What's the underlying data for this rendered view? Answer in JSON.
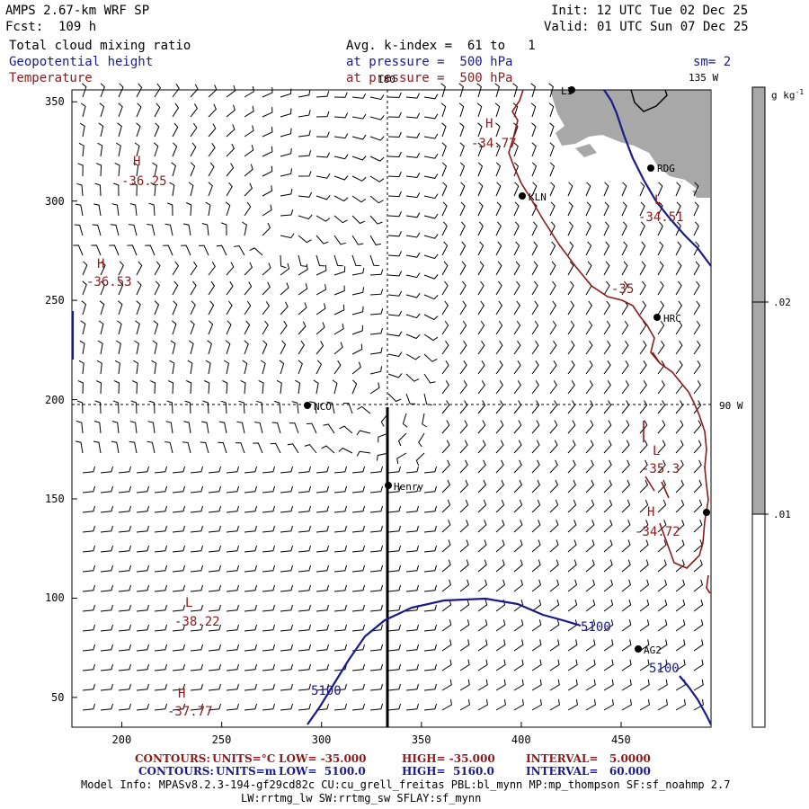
{
  "header": {
    "model": "AMPS 2.67-km WRF SP",
    "forecast": "Fcst:  109 h",
    "init": "Init: 12 UTC Tue 02 Dec 25",
    "valid": "Valid: 01 UTC Sun 07 Dec 25",
    "field1": "Total cloud mixing ratio",
    "field2": "Geopotential height",
    "field3": "Temperature",
    "avg_k": "Avg. k-index =  61 to   1",
    "pressure1": "at pressure =  500 hPa",
    "pressure2": "at pressure =  500 hPa",
    "sm": "sm= 2"
  },
  "map_labels": {
    "lon180": "180",
    "lon135": "135 W",
    "lon90": "90 W",
    "stations": [
      "LI",
      "RDG",
      "KLN",
      "HRC",
      "NCO",
      "Henry",
      "AG2"
    ]
  },
  "extrema": [
    {
      "letter": "H",
      "value": "-36.25"
    },
    {
      "letter": "H",
      "value": "-36.53"
    },
    {
      "letter": "H",
      "value": "-34.77"
    },
    {
      "letter": "L",
      "value": "-34.51"
    },
    {
      "letter": "L",
      "value": "-35.3"
    },
    {
      "letter": "H",
      "value": "-34.72"
    },
    {
      "letter": "L",
      "value": "-38.22"
    },
    {
      "letter": "H",
      "value": "-37.77"
    }
  ],
  "contour_labels": {
    "temp_35": "-35",
    "height_a": "5100",
    "height_b": "5100",
    "height_c": "5100"
  },
  "colorbar": {
    "units": "g kg",
    "units_sup": "-1",
    "ticks": [
      ".02",
      ".01"
    ],
    "shade_color": "#a8a8a8"
  },
  "footer": {
    "line1": {
      "label": "CONTOURS:",
      "units": "UNITS=°C",
      "low": "LOW= -35.000",
      "high": "HIGH= -35.000",
      "interval": "INTERVAL=   5.0000"
    },
    "line2": {
      "label": "CONTOURS:",
      "units": "UNITS=m",
      "low": "LOW=  5100.0",
      "high": "HIGH=  5160.0",
      "interval": "INTERVAL=   60.000"
    },
    "model_info": "Model Info: MPASv8.2.3-194-gf29cd82c CU:cu_grell_freitas PBL:bl_mynn MP:mp_thompson SF:sf_noahmp 2.7",
    "model_info2": "LW:rrtmg_lw SW:rrtmg_sw SFLAY:sf_mynn"
  },
  "colors": {
    "temperature": "#8b1a1a",
    "height": "#1a1a8c",
    "cloud": "#a8a8a8"
  },
  "chart_data": {
    "type": "contour-map",
    "title": "Total cloud mixing ratio, Geopotential height, Temperature at 500 hPa",
    "x_ticks": [
      200,
      250,
      300,
      350,
      400,
      450
    ],
    "y_ticks": [
      50,
      100,
      150,
      200,
      250,
      300,
      350
    ],
    "xlim": [
      175,
      495
    ],
    "ylim": [
      35,
      356
    ],
    "cross_section_x": 334,
    "cross_section_y": [
      35,
      194
    ],
    "height_contour_m": 5100,
    "temperature_contour_c": -35
  }
}
